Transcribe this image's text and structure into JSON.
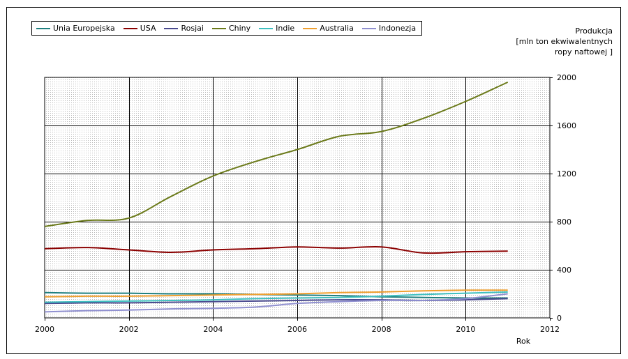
{
  "chart_data": {
    "type": "line",
    "xlabel": "Rok",
    "ylabel_lines": [
      "Produkcja",
      "[mln ton ekwiwalentnych",
      "ropy naftowej ]"
    ],
    "xlim": [
      2000,
      2012
    ],
    "ylim": [
      0,
      2000
    ],
    "x_ticks": [
      2000,
      2002,
      2004,
      2006,
      2008,
      2010,
      2012
    ],
    "y_ticks": [
      0,
      400,
      800,
      1200,
      1600,
      2000
    ],
    "grid": true,
    "legend_position": "top-left",
    "x": [
      2000,
      2001,
      2002,
      2003,
      2004,
      2005,
      2006,
      2007,
      2008,
      2009,
      2010,
      2011
    ],
    "series": [
      {
        "name": "Unia Europejska",
        "color": "#1f7f7f",
        "values": [
          210,
          205,
          205,
          200,
          200,
          195,
          190,
          185,
          175,
          170,
          165,
          165
        ]
      },
      {
        "name": "USA",
        "color": "#8b0000",
        "values": [
          575,
          585,
          565,
          545,
          565,
          575,
          590,
          580,
          590,
          540,
          550,
          555
        ]
      },
      {
        "name": "Rosjai",
        "color": "#4a4a8f",
        "values": [
          120,
          125,
          125,
          130,
          135,
          140,
          145,
          150,
          150,
          145,
          150,
          160
        ]
      },
      {
        "name": "Chiny",
        "color": "#6b7a1a",
        "values": [
          760,
          810,
          830,
          1010,
          1180,
          1300,
          1400,
          1510,
          1550,
          1660,
          1800,
          1960
        ]
      },
      {
        "name": "Indie",
        "color": "#3fc0c0",
        "values": [
          130,
          135,
          140,
          145,
          150,
          160,
          165,
          170,
          180,
          195,
          205,
          215
        ]
      },
      {
        "name": "Australia",
        "color": "#f0a030",
        "values": [
          175,
          180,
          180,
          185,
          190,
          195,
          200,
          210,
          215,
          225,
          230,
          230
        ]
      },
      {
        "name": "Indonezja",
        "color": "#9090d0",
        "values": [
          50,
          60,
          65,
          75,
          80,
          90,
          120,
          135,
          145,
          145,
          160,
          200
        ]
      }
    ]
  }
}
